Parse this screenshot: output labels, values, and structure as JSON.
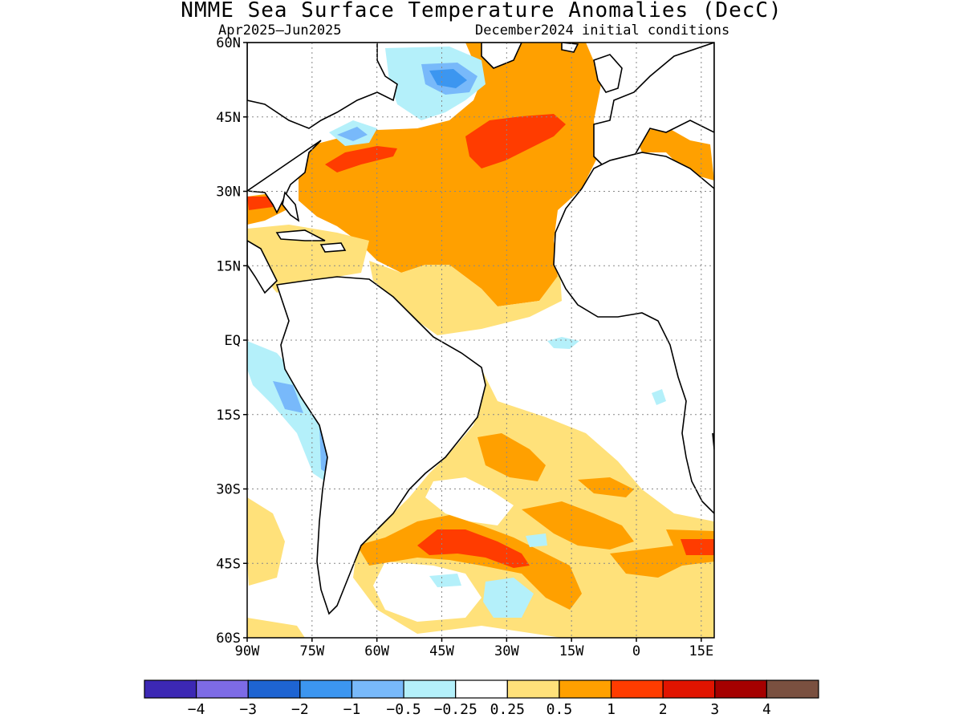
{
  "title": "NMME Sea Surface Temperature Anomalies (DecC)",
  "period": "Apr2025–Jun2025",
  "init": "December2024 initial conditions",
  "map": {
    "lon_range": [
      -90,
      18
    ],
    "lat_range": [
      -60,
      60
    ],
    "lat_ticks": [
      {
        "value": 60,
        "label": "60N"
      },
      {
        "value": 45,
        "label": "45N"
      },
      {
        "value": 30,
        "label": "30N"
      },
      {
        "value": 15,
        "label": "15N"
      },
      {
        "value": 0,
        "label": "EQ"
      },
      {
        "value": -15,
        "label": "15S"
      },
      {
        "value": -30,
        "label": "30S"
      },
      {
        "value": -45,
        "label": "45S"
      },
      {
        "value": -60,
        "label": "60S"
      }
    ],
    "lon_ticks": [
      {
        "value": -90,
        "label": "90W"
      },
      {
        "value": -75,
        "label": "75W"
      },
      {
        "value": -60,
        "label": "60W"
      },
      {
        "value": -45,
        "label": "45W"
      },
      {
        "value": -30,
        "label": "30W"
      },
      {
        "value": -15,
        "label": "15W"
      },
      {
        "value": 0,
        "label": "0"
      },
      {
        "value": 15,
        "label": "15E"
      }
    ]
  },
  "colorbar": {
    "colors": [
      "#3c28b4",
      "#7d6be6",
      "#1e64d2",
      "#3c96f0",
      "#78b9fa",
      "#b4f0fa",
      "#ffffff",
      "#ffe17a",
      "#ffa000",
      "#ff3c00",
      "#e11400",
      "#a50000",
      "#7a5040"
    ],
    "labels": [
      "−4",
      "−3",
      "−2",
      "−1",
      "−0.5",
      "−0.25",
      "0.25",
      "0.5",
      "1",
      "2",
      "3",
      "4"
    ]
  },
  "colors": {
    "pale_yellow": "#ffe17a",
    "orange": "#ffa000",
    "red": "#ff3c00",
    "dark_red": "#e11400",
    "light_cyan": "#b4f0fa",
    "light_blue": "#78b9fa",
    "blue": "#3c96f0",
    "brown": "#7a5040",
    "coast": "#000000"
  },
  "anomaly_regions": [
    {
      "label": "north-atlantic-warm",
      "category": "0.5 to 1"
    },
    {
      "label": "north-atlantic-core",
      "category": "1 to 2"
    },
    {
      "label": "gulf-stream-core",
      "category": "1 to 2"
    },
    {
      "label": "labrador-cool",
      "category": "-1 to -0.5"
    },
    {
      "label": "tropical-atlantic",
      "category": "0.25 to 0.5"
    },
    {
      "label": "south-atlantic",
      "category": "0.25 to 0.5"
    },
    {
      "label": "south-atlantic-warm",
      "category": "0.5 to 1"
    },
    {
      "label": "southern-ocean-core",
      "category": "1 to 2"
    },
    {
      "label": "peru-coast-cool",
      "category": "-0.5 to -0.25"
    },
    {
      "label": "chile-coast-cool",
      "category": "-1 to -0.5"
    }
  ]
}
